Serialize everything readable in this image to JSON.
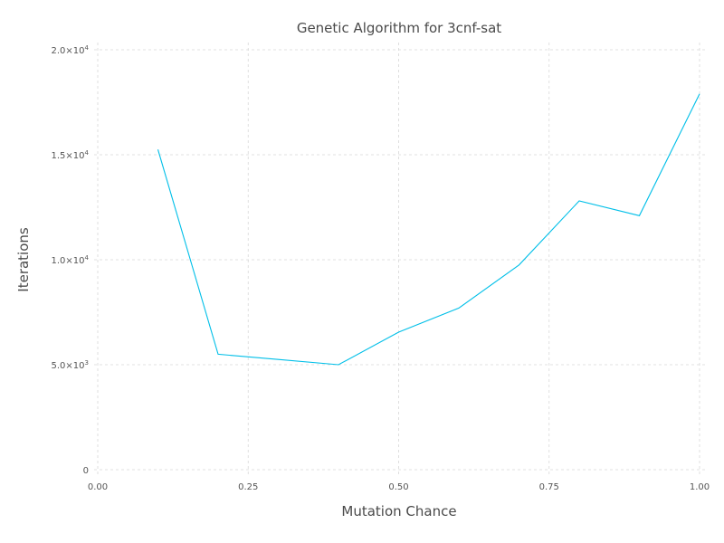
{
  "chart_data": {
    "type": "line",
    "title": "Genetic Algorithm for 3cnf-sat",
    "xlabel": "Mutation Chance",
    "ylabel": "Iterations",
    "xlim": [
      0,
      1
    ],
    "ylim": [
      0,
      20000
    ],
    "x_ticks": [
      0,
      0.25,
      0.5,
      0.75,
      1.0
    ],
    "x_tick_labels": [
      "0.00",
      "0.25",
      "0.50",
      "0.75",
      "1.00"
    ],
    "y_ticks": [
      0,
      5000,
      10000,
      15000,
      20000
    ],
    "y_tick_labels": [
      {
        "mantissa": "0",
        "exponent": ""
      },
      {
        "mantissa": "5.0×10",
        "exponent": "3"
      },
      {
        "mantissa": "1.0×10",
        "exponent": "4"
      },
      {
        "mantissa": "1.5×10",
        "exponent": "4"
      },
      {
        "mantissa": "2.0×10",
        "exponent": "4"
      }
    ],
    "grid": true,
    "legend": "none",
    "series": [
      {
        "color": "#00bfe8",
        "x": [
          0.1,
          0.2,
          0.3,
          0.4,
          0.5,
          0.6,
          0.7,
          0.8,
          0.9,
          1.0
        ],
        "y": [
          15250,
          5500,
          5250,
          5000,
          6550,
          7700,
          9750,
          12800,
          12100,
          17900
        ]
      }
    ]
  }
}
